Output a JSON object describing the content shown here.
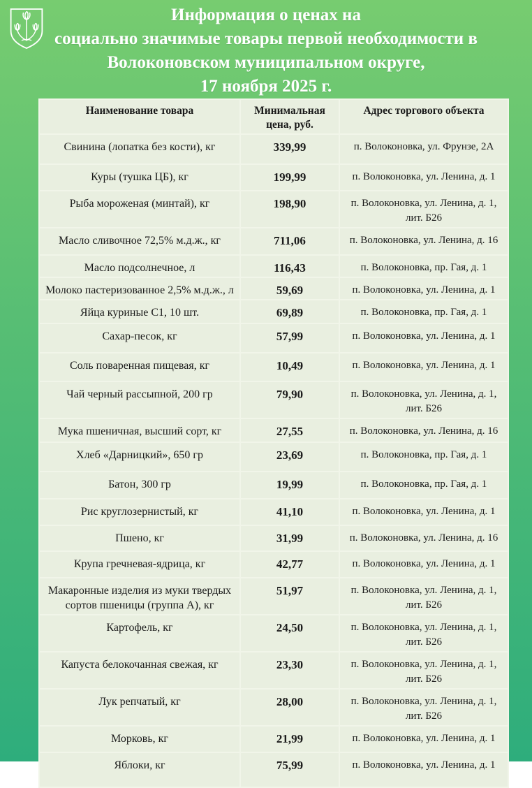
{
  "header": {
    "logo_name": "volokonovka-coat-of-arms",
    "title_lines": [
      "Информация о ценах на",
      "социально значимые товары первой необходимости в",
      "Волоконовском муниципальном округе,",
      "17 ноября 2025 г."
    ]
  },
  "colors": {
    "background_top": "#77cc70",
    "background_bottom": "#2ead7c",
    "cell_background": "#e9efe0",
    "grid_line": "#f1f5e9",
    "title_text": "#ffffff",
    "table_text": "#1a1a1a"
  },
  "table": {
    "headers": [
      "Наименование товара",
      "Минимальная цена, руб.",
      "Адрес торгового объекта"
    ],
    "rows": [
      {
        "name": "Свинина (лопатка без кости), кг",
        "price": "339,99",
        "address": "п. Волоконовка, ул. Фрунзе, 2А"
      },
      {
        "name": "Куры (тушка ЦБ), кг",
        "price": "199,99",
        "address": "п. Волоконовка, ул. Ленина, д. 1"
      },
      {
        "name": "Рыба мороженая (минтай), кг",
        "price": "198,90",
        "address": "п. Волоконовка, ул. Ленина, д. 1, лит. Б26"
      },
      {
        "name": "Масло сливочное 72,5% м.д.ж., кг",
        "price": "711,06",
        "address": "п. Волоконовка, ул. Ленина, д. 16"
      },
      {
        "name": "Масло подсолнечное, л",
        "price": "116,43",
        "address": "п. Волоконовка, пр. Гая, д. 1"
      },
      {
        "name": "Молоко пастеризованное 2,5% м.д.ж., л",
        "price": "59,69",
        "address": "п. Волоконовка, ул. Ленина, д. 1"
      },
      {
        "name": "Яйца куриные С1, 10 шт.",
        "price": "69,89",
        "address": "п. Волоконовка, пр. Гая, д. 1"
      },
      {
        "name": "Сахар-песок, кг",
        "price": "57,99",
        "address": "п. Волоконовка, ул. Ленина, д. 1"
      },
      {
        "name": "Соль поваренная пищевая, кг",
        "price": "10,49",
        "address": "п. Волоконовка, ул. Ленина, д. 1"
      },
      {
        "name": "Чай черный рассыпной, 200 гр",
        "price": "79,90",
        "address": "п. Волоконовка, ул. Ленина, д. 1, лит. Б26"
      },
      {
        "name": "Мука пшеничная, высший сорт, кг",
        "price": "27,55",
        "address": "п. Волоконовка, ул. Ленина, д. 16"
      },
      {
        "name": "Хлеб «Дарницкий», 650 гр",
        "price": "23,69",
        "address": "п. Волоконовка, пр. Гая, д. 1"
      },
      {
        "name": "Батон, 300 гр",
        "price": "19,99",
        "address": "п. Волоконовка, пр. Гая, д. 1"
      },
      {
        "name": "Рис круглозернистый, кг",
        "price": "41,10",
        "address": "п. Волоконовка, ул. Ленина, д. 1"
      },
      {
        "name": "Пшено, кг",
        "price": "31,99",
        "address": "п. Волоконовка, ул. Ленина, д. 16"
      },
      {
        "name": "Крупа гречневая-ядрица, кг",
        "price": "42,77",
        "address": "п. Волоконовка, ул. Ленина, д. 1"
      },
      {
        "name": "Макаронные изделия из муки твердых сортов пшеницы (группа А), кг",
        "price": "51,97",
        "address": "п. Волоконовка, ул. Ленина, д. 1, лит. Б26"
      },
      {
        "name": "Картофель, кг",
        "price": "24,50",
        "address": "п. Волоконовка, ул. Ленина, д. 1, лит. Б26"
      },
      {
        "name": "Капуста белокочанная свежая, кг",
        "price": "23,30",
        "address": "п. Волоконовка, ул. Ленина, д. 1, лит. Б26"
      },
      {
        "name": "Лук репчатый, кг",
        "price": "28,00",
        "address": "п. Волоконовка, ул. Ленина, д. 1, лит. Б26"
      },
      {
        "name": "Морковь, кг",
        "price": "21,99",
        "address": "п. Волоконовка, ул. Ленина, д. 1"
      },
      {
        "name": "Яблоки, кг",
        "price": "75,99",
        "address": "п. Волоконовка, ул. Ленина, д. 1"
      }
    ]
  }
}
